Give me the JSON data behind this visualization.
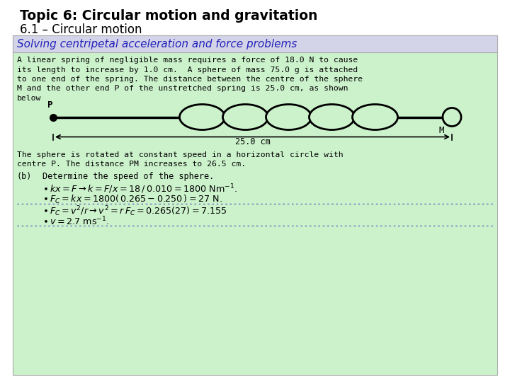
{
  "title_line1": "Topic 6: Circular motion and gravitation",
  "title_line2": "6.1 – Circular motion",
  "title_color": "#000000",
  "box_bg": "#ccf2cc",
  "header_bg": "#d4d4e8",
  "header_text": "Solving centripetal acceleration and force problems",
  "header_text_color": "#2222bb",
  "body_text_color": "#000000",
  "bg_color": "#ffffff",
  "problem_text_lines": [
    "A linear spring of negligible mass requires a force of 18.0 N to cause",
    "its length to increase by 1.0 cm.  A sphere of mass 75.0 g is attached",
    "to one end of the spring. The distance between the centre of the sphere",
    "M and the other end P of the unstretched spring is 25.0 cm, as shown",
    "below"
  ],
  "bottom_text_lines": [
    "The sphere is rotated at constant speed in a horizontal circle with",
    "centre P. The distance PM increases to 26.5 cm."
  ],
  "part_b_label": "(b)",
  "part_b_text": "Determine the speed of the sphere.",
  "dotted_color": "#5555bb"
}
